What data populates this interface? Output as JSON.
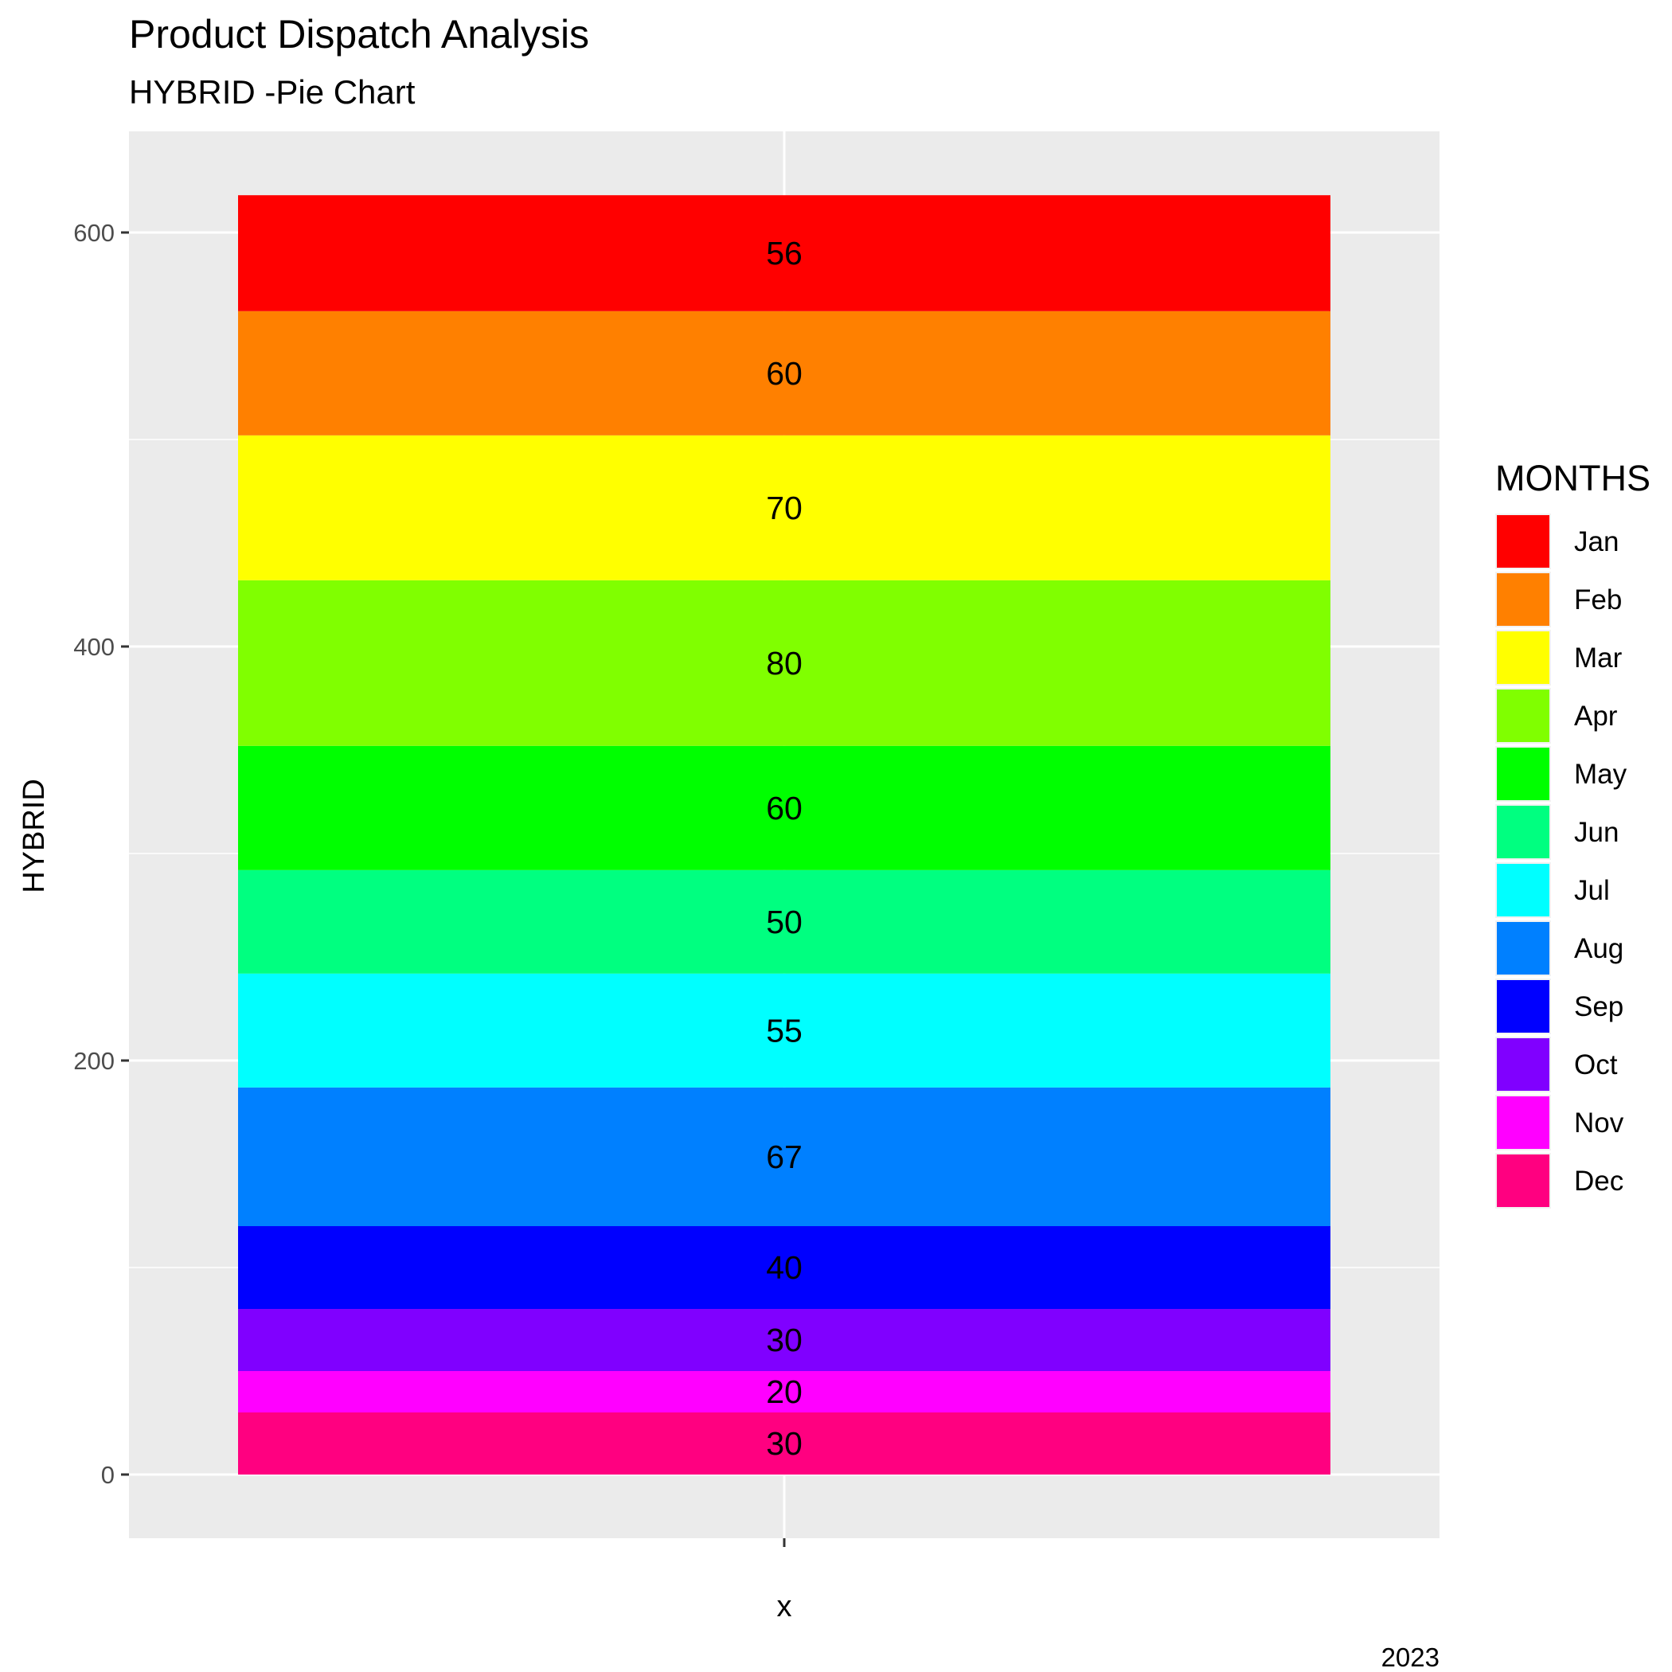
{
  "chart_data": {
    "type": "bar",
    "stacked": true,
    "title": "Product Dispatch Analysis",
    "subtitle": "HYBRID -Pie Chart",
    "xlabel": "x",
    "ylabel": "HYBRID",
    "caption": "2023",
    "ylim": [
      0,
      620
    ],
    "yticks": [
      "0",
      "200",
      "400",
      "600"
    ],
    "grid": true,
    "legend": {
      "title": "MONTHS",
      "position": "right"
    },
    "stack_order": "Jan on top, Dec at bottom",
    "series": [
      {
        "name": "Jan",
        "value": 56,
        "label": "56",
        "color": "#FF0000"
      },
      {
        "name": "Feb",
        "value": 60,
        "label": "60",
        "color": "#FF8000"
      },
      {
        "name": "Mar",
        "value": 70,
        "label": "70",
        "color": "#FFFF00"
      },
      {
        "name": "Apr",
        "value": 80,
        "label": "80",
        "color": "#80FF00"
      },
      {
        "name": "May",
        "value": 60,
        "label": "60",
        "color": "#00FF00"
      },
      {
        "name": "Jun",
        "value": 50,
        "label": "50",
        "color": "#00FF80"
      },
      {
        "name": "Jul",
        "value": 55,
        "label": "55",
        "color": "#00FFFF"
      },
      {
        "name": "Aug",
        "value": 67,
        "label": "67",
        "color": "#0080FF"
      },
      {
        "name": "Sep",
        "value": 40,
        "label": "40",
        "color": "#0000FF"
      },
      {
        "name": "Oct",
        "value": 30,
        "label": "30",
        "color": "#8000FF"
      },
      {
        "name": "Nov",
        "value": 20,
        "label": "20",
        "color": "#FF00FF"
      },
      {
        "name": "Dec",
        "value": 30,
        "label": "30",
        "color": "#FF0080"
      }
    ]
  }
}
